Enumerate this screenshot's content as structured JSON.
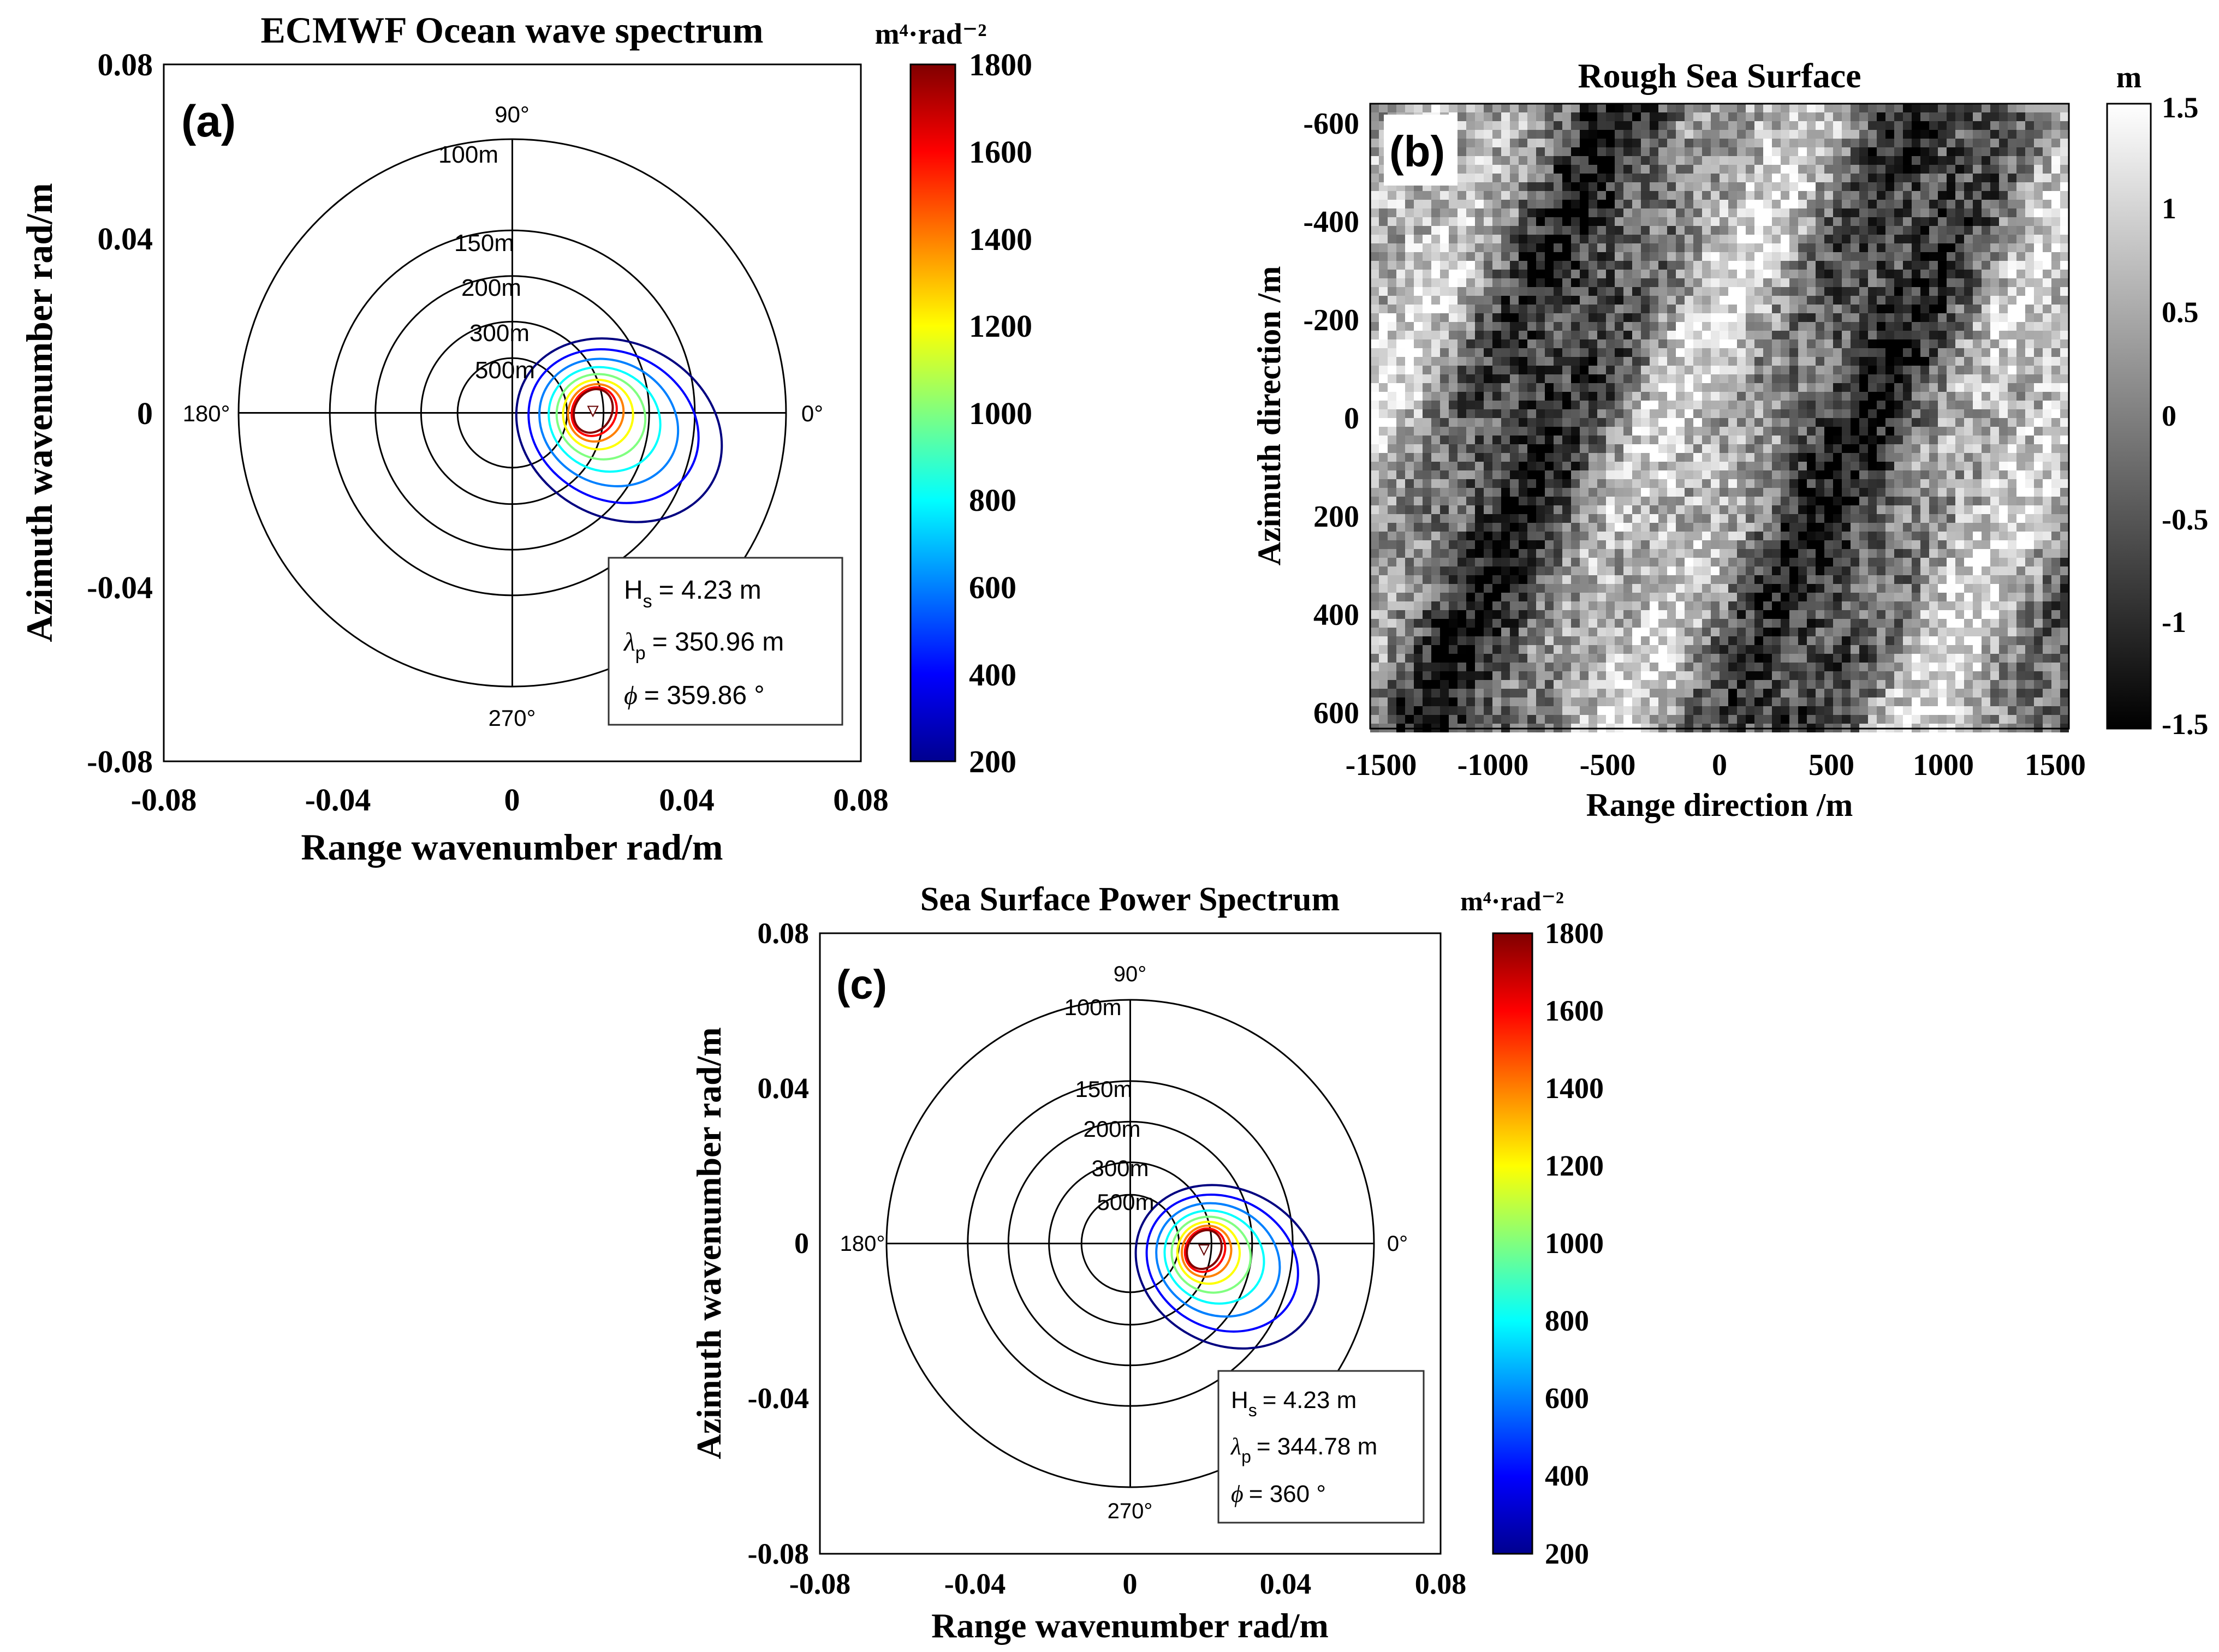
{
  "chart_data": [
    {
      "id": "a",
      "type": "polar-contour",
      "panel_label": "(a)",
      "title": "ECMWF Ocean wave spectrum",
      "xlabel": "Range wavenumber rad/m",
      "ylabel": "Azimuth wavenumber rad/m",
      "xlim": [
        -0.08,
        0.08
      ],
      "ylim": [
        -0.08,
        0.08
      ],
      "xticks": [
        "-0.08",
        "-0.04",
        "0",
        "0.04",
        "0.08"
      ],
      "yticks": [
        "0.08",
        "0.04",
        "0",
        "-0.04",
        "-0.08"
      ],
      "rings": [
        {
          "label": "100m",
          "k": 0.06283
        },
        {
          "label": "150m",
          "k": 0.04189
        },
        {
          "label": "200m",
          "k": 0.03142
        },
        {
          "label": "300m",
          "k": 0.02094
        },
        {
          "label": "500m",
          "k": 0.01257
        }
      ],
      "angles": {
        "north": "90°",
        "west": "180°",
        "south": "270°",
        "east": "0°"
      },
      "peak": {
        "kx": 0.0185,
        "ky": 0.0005
      },
      "contour_levels": [
        200,
        400,
        600,
        800,
        1000,
        1200,
        1400,
        1600,
        1800
      ],
      "stats": {
        "hs": "= 4.23 m",
        "lambda": "= 350.96 m",
        "phi": "= 359.86 °"
      },
      "colorbar": {
        "unit_label": "m⁴·rad⁻²",
        "ticks": [
          "1800",
          "1600",
          "1400",
          "1200",
          "1000",
          "800",
          "600",
          "400",
          "200"
        ],
        "min": 200,
        "max": 1800,
        "colormap": "jet"
      }
    },
    {
      "id": "b",
      "type": "heatmap",
      "panel_label": "(b)",
      "title": "Rough Sea Surface",
      "xlabel": "Range direction /m",
      "ylabel": "Azimuth direction /m",
      "xlim": [
        -1600,
        1600
      ],
      "ylim": [
        -650,
        650
      ],
      "xticks": [
        "-1500",
        "-1000",
        "-500",
        "0",
        "500",
        "1000",
        "1500"
      ],
      "yticks": [
        "-600",
        "-400",
        "-200",
        "0",
        "200",
        "400",
        "600"
      ],
      "colorbar": {
        "unit_label": "m",
        "ticks": [
          "1.5",
          "1",
          "0.5",
          "0",
          "-0.5",
          "-1",
          "-1.5"
        ],
        "min": -1.5,
        "max": 1.5,
        "colormap": "gray"
      }
    },
    {
      "id": "c",
      "type": "polar-contour",
      "panel_label": "(c)",
      "title": "Sea Surface Power Spectrum",
      "xlabel": "Range wavenumber rad/m",
      "ylabel": "Azimuth wavenumber rad/m",
      "xlim": [
        -0.08,
        0.08
      ],
      "ylim": [
        -0.08,
        0.08
      ],
      "xticks": [
        "-0.08",
        "-0.04",
        "0",
        "0.04",
        "0.08"
      ],
      "yticks": [
        "0.08",
        "0.04",
        "0",
        "-0.04",
        "-0.08"
      ],
      "rings": [
        {
          "label": "100m",
          "k": 0.06283
        },
        {
          "label": "150m",
          "k": 0.04189
        },
        {
          "label": "200m",
          "k": 0.03142
        },
        {
          "label": "300m",
          "k": 0.02094
        },
        {
          "label": "500m",
          "k": 0.01257
        }
      ],
      "angles": {
        "north": "90°",
        "west": "180°",
        "south": "270°",
        "east": "0°"
      },
      "peak": {
        "kx": 0.019,
        "ky": -0.0015
      },
      "contour_levels": [
        200,
        400,
        600,
        800,
        1000,
        1200,
        1400,
        1600,
        1800
      ],
      "stats": {
        "hs": "= 4.23 m",
        "lambda": "= 344.78 m",
        "phi": "= 360 °"
      },
      "colorbar": {
        "unit_label": "m⁴·rad⁻²",
        "ticks": [
          "1800",
          "1600",
          "1400",
          "1200",
          "1000",
          "800",
          "600",
          "400",
          "200"
        ],
        "min": 200,
        "max": 1800,
        "colormap": "jet"
      }
    }
  ]
}
